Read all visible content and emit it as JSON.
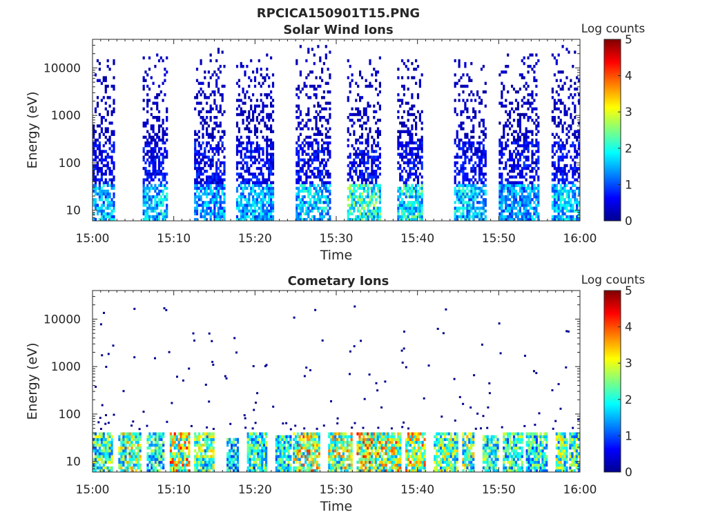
{
  "figure_title": "RPCICA150901T15.PNG",
  "colormap": [
    "#00008f",
    "#0000ff",
    "#0080ff",
    "#00ffff",
    "#80ff80",
    "#ffff00",
    "#ff8000",
    "#ff0000",
    "#800000"
  ],
  "chart_data": [
    {
      "type": "heatmap",
      "title": "Solar Wind Ions",
      "xlabel": "Time",
      "ylabel": "Energy (eV)",
      "y_scale": "log",
      "xlim": [
        "15:00",
        "16:00"
      ],
      "ylim": [
        6,
        40000
      ],
      "x_ticks": [
        "15:00",
        "15:10",
        "15:20",
        "15:30",
        "15:40",
        "15:50",
        "16:00"
      ],
      "y_ticks": [
        "10",
        "100",
        "1000",
        "10000"
      ],
      "colorbar": {
        "label": "Log counts",
        "range": [
          0,
          5
        ],
        "ticks": [
          "0",
          "1",
          "2",
          "3",
          "4",
          "5"
        ]
      },
      "bursts": [
        {
          "start": "15:00:00",
          "end": "15:02:45",
          "max_energy_eV": 15000,
          "sparse_level": 0.3,
          "core_level": 1.6
        },
        {
          "start": "15:06:10",
          "end": "15:09:15",
          "max_energy_eV": 20000,
          "sparse_level": 0.3,
          "core_level": 1.7
        },
        {
          "start": "15:12:30",
          "end": "15:16:20",
          "max_energy_eV": 25000,
          "sparse_level": 0.3,
          "core_level": 1.5
        },
        {
          "start": "15:17:40",
          "end": "15:22:20",
          "max_energy_eV": 20000,
          "sparse_level": 0.3,
          "core_level": 1.6
        },
        {
          "start": "15:25:00",
          "end": "15:29:20",
          "max_energy_eV": 30000,
          "sparse_level": 0.3,
          "core_level": 1.7
        },
        {
          "start": "15:31:20",
          "end": "15:35:30",
          "max_energy_eV": 20000,
          "sparse_level": 0.3,
          "core_level": 2.2
        },
        {
          "start": "15:37:30",
          "end": "15:40:40",
          "max_energy_eV": 15000,
          "sparse_level": 0.3,
          "core_level": 2.0
        },
        {
          "start": "15:44:30",
          "end": "15:48:30",
          "max_energy_eV": 15000,
          "sparse_level": 0.3,
          "core_level": 1.8
        },
        {
          "start": "15:50:00",
          "end": "15:55:00",
          "max_energy_eV": 20000,
          "sparse_level": 0.3,
          "core_level": 1.5
        },
        {
          "start": "15:56:30",
          "end": "16:00:00",
          "max_energy_eV": 30000,
          "sparse_level": 0.3,
          "core_level": 1.7
        }
      ]
    },
    {
      "type": "heatmap",
      "title": "Cometary Ions",
      "xlabel": "Time",
      "ylabel": "Energy (eV)",
      "y_scale": "log",
      "xlim": [
        "15:00",
        "16:00"
      ],
      "ylim": [
        6,
        40000
      ],
      "x_ticks": [
        "15:00",
        "15:10",
        "15:20",
        "15:30",
        "15:40",
        "15:50",
        "16:00"
      ],
      "y_ticks": [
        "10",
        "100",
        "1000",
        "10000"
      ],
      "colorbar": {
        "label": "Log counts",
        "range": [
          0,
          5
        ],
        "ticks": [
          "0",
          "1",
          "2",
          "3",
          "4",
          "5"
        ]
      },
      "bursts": [
        {
          "start": "15:00:00",
          "end": "15:02:30",
          "max_energy_eV": 40,
          "core_level": 2.8
        },
        {
          "start": "15:03:10",
          "end": "15:06:00",
          "max_energy_eV": 40,
          "core_level": 3.2
        },
        {
          "start": "15:06:40",
          "end": "15:08:50",
          "max_energy_eV": 40,
          "core_level": 2.6
        },
        {
          "start": "15:09:30",
          "end": "15:12:00",
          "max_energy_eV": 40,
          "core_level": 3.8
        },
        {
          "start": "15:12:30",
          "end": "15:15:00",
          "max_energy_eV": 40,
          "core_level": 3.0
        },
        {
          "start": "15:16:30",
          "end": "15:18:00",
          "max_energy_eV": 30,
          "core_level": 2.4
        },
        {
          "start": "15:19:00",
          "end": "15:21:30",
          "max_energy_eV": 40,
          "core_level": 2.6
        },
        {
          "start": "15:22:30",
          "end": "15:24:30",
          "max_energy_eV": 35,
          "core_level": 2.5
        },
        {
          "start": "15:24:40",
          "end": "15:28:00",
          "max_energy_eV": 40,
          "core_level": 3.6
        },
        {
          "start": "15:29:00",
          "end": "15:32:00",
          "max_energy_eV": 40,
          "core_level": 3.4
        },
        {
          "start": "15:32:30",
          "end": "15:35:00",
          "max_energy_eV": 40,
          "core_level": 3.8
        },
        {
          "start": "15:35:00",
          "end": "15:38:00",
          "max_energy_eV": 40,
          "core_level": 3.7
        },
        {
          "start": "15:38:30",
          "end": "15:41:00",
          "max_energy_eV": 40,
          "core_level": 3.6
        },
        {
          "start": "15:42:00",
          "end": "15:45:00",
          "max_energy_eV": 40,
          "core_level": 3.0
        },
        {
          "start": "15:45:30",
          "end": "15:47:00",
          "max_energy_eV": 40,
          "core_level": 3.1
        },
        {
          "start": "15:48:00",
          "end": "15:50:00",
          "max_energy_eV": 35,
          "core_level": 2.7
        },
        {
          "start": "15:50:30",
          "end": "15:53:00",
          "max_energy_eV": 40,
          "core_level": 2.6
        },
        {
          "start": "15:53:20",
          "end": "15:56:00",
          "max_energy_eV": 40,
          "core_level": 2.5
        },
        {
          "start": "15:57:00",
          "end": "15:58:30",
          "max_energy_eV": 40,
          "core_level": 3.0
        },
        {
          "start": "15:58:40",
          "end": "16:00:00",
          "max_energy_eV": 40,
          "core_level": 2.8
        }
      ]
    }
  ]
}
